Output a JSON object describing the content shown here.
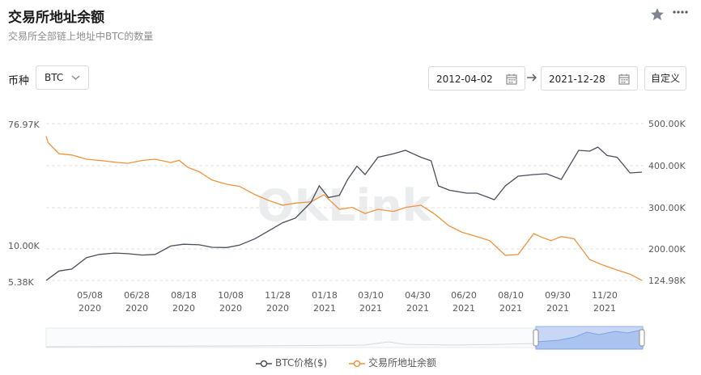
{
  "header": {
    "title": "交易所地址余额",
    "subtitle": "交易所全部链上地址中BTC的数量"
  },
  "controls": {
    "coin_label": "币种",
    "coin_value": "BTC",
    "start_date": "2012-04-02",
    "end_date": "2021-12-28",
    "custom_label": "自定义"
  },
  "colors": {
    "price_line": "#4a4d5c",
    "balance_line": "#f0933c",
    "grid": "#e0e0e0",
    "axis_text": "#595959",
    "slider_fill": "#c7d7f5",
    "slider_border": "#8fb0ea"
  },
  "chart_data": {
    "type": "line",
    "x_tick_labels": [
      [
        "05/08",
        "2020"
      ],
      [
        "06/28",
        "2020"
      ],
      [
        "08/18",
        "2020"
      ],
      [
        "10/08",
        "2020"
      ],
      [
        "11/28",
        "2020"
      ],
      [
        "01/18",
        "2021"
      ],
      [
        "03/10",
        "2021"
      ],
      [
        "04/30",
        "2021"
      ],
      [
        "06/20",
        "2021"
      ],
      [
        "08/10",
        "2021"
      ],
      [
        "09/30",
        "2021"
      ],
      [
        "11/20",
        "2021"
      ]
    ],
    "x_range": [
      "2020-03-18",
      "2021-12-28"
    ],
    "y_left": {
      "ticks": [
        "76.97K",
        "10.00K",
        "5.38K"
      ]
    },
    "y_right": {
      "ticks": [
        "500.00K",
        "400.00K",
        "300.00K",
        "200.00K",
        "124.98K"
      ],
      "range": [
        124980,
        500000
      ]
    },
    "series": [
      {
        "name": "BTC价格($)",
        "axis": "left",
        "x": [
          "2020-03-18",
          "2020-04-01",
          "2020-04-15",
          "2020-05-01",
          "2020-05-15",
          "2020-06-01",
          "2020-06-15",
          "2020-07-01",
          "2020-07-15",
          "2020-08-01",
          "2020-08-15",
          "2020-09-01",
          "2020-09-15",
          "2020-10-01",
          "2020-10-15",
          "2020-11-01",
          "2020-11-15",
          "2020-12-01",
          "2020-12-15",
          "2021-01-01",
          "2021-01-10",
          "2021-01-20",
          "2021-02-01",
          "2021-02-10",
          "2021-02-20",
          "2021-03-01",
          "2021-03-15",
          "2021-04-01",
          "2021-04-14",
          "2021-05-01",
          "2021-05-12",
          "2021-05-20",
          "2021-06-01",
          "2021-06-20",
          "2021-07-01",
          "2021-07-20",
          "2021-08-01",
          "2021-08-15",
          "2021-09-01",
          "2021-09-15",
          "2021-10-01",
          "2021-10-20",
          "2021-11-01",
          "2021-11-10",
          "2021-11-20",
          "2021-12-01",
          "2021-12-15",
          "2021-12-28"
        ],
        "y": [
          5380,
          6800,
          7100,
          8800,
          9300,
          9500,
          9400,
          9200,
          9300,
          11200,
          11800,
          11600,
          10800,
          10700,
          11500,
          13600,
          16000,
          18800,
          20500,
          29000,
          40000,
          32000,
          33500,
          44000,
          52000,
          47000,
          57000,
          59000,
          62000,
          57000,
          55000,
          40000,
          37000,
          35000,
          35000,
          30500,
          40000,
          46000,
          47000,
          47500,
          44000,
          62000,
          61000,
          66000,
          58000,
          57000,
          48000,
          48500
        ]
      },
      {
        "name": "交易所地址余额",
        "axis": "right",
        "x": [
          "2020-03-18",
          "2020-03-20",
          "2020-04-01",
          "2020-04-15",
          "2020-05-01",
          "2020-05-15",
          "2020-06-01",
          "2020-06-15",
          "2020-07-01",
          "2020-07-15",
          "2020-08-01",
          "2020-08-10",
          "2020-08-20",
          "2020-09-01",
          "2020-09-15",
          "2020-10-01",
          "2020-10-15",
          "2020-11-01",
          "2020-11-15",
          "2020-12-01",
          "2020-12-15",
          "2021-01-01",
          "2021-01-15",
          "2021-02-01",
          "2021-02-15",
          "2021-03-01",
          "2021-03-15",
          "2021-04-01",
          "2021-04-15",
          "2021-05-01",
          "2021-05-15",
          "2021-06-01",
          "2021-06-15",
          "2021-07-01",
          "2021-07-15",
          "2021-08-01",
          "2021-08-15",
          "2021-09-01",
          "2021-09-10",
          "2021-09-20",
          "2021-10-01",
          "2021-10-15",
          "2021-11-01",
          "2021-11-15",
          "2021-12-01",
          "2021-12-15",
          "2021-12-28"
        ],
        "y": [
          470000,
          455000,
          428000,
          425000,
          415000,
          412000,
          408000,
          405000,
          412000,
          415000,
          407000,
          412000,
          395000,
          385000,
          365000,
          355000,
          350000,
          330000,
          317000,
          305000,
          310000,
          313000,
          330000,
          295000,
          300000,
          285000,
          295000,
          290000,
          300000,
          305000,
          285000,
          255000,
          240000,
          230000,
          220000,
          185000,
          187000,
          237000,
          228000,
          220000,
          230000,
          225000,
          175000,
          162000,
          150000,
          140000,
          125000
        ]
      }
    ],
    "legend": "bottom-center",
    "watermark": "OKLink"
  }
}
